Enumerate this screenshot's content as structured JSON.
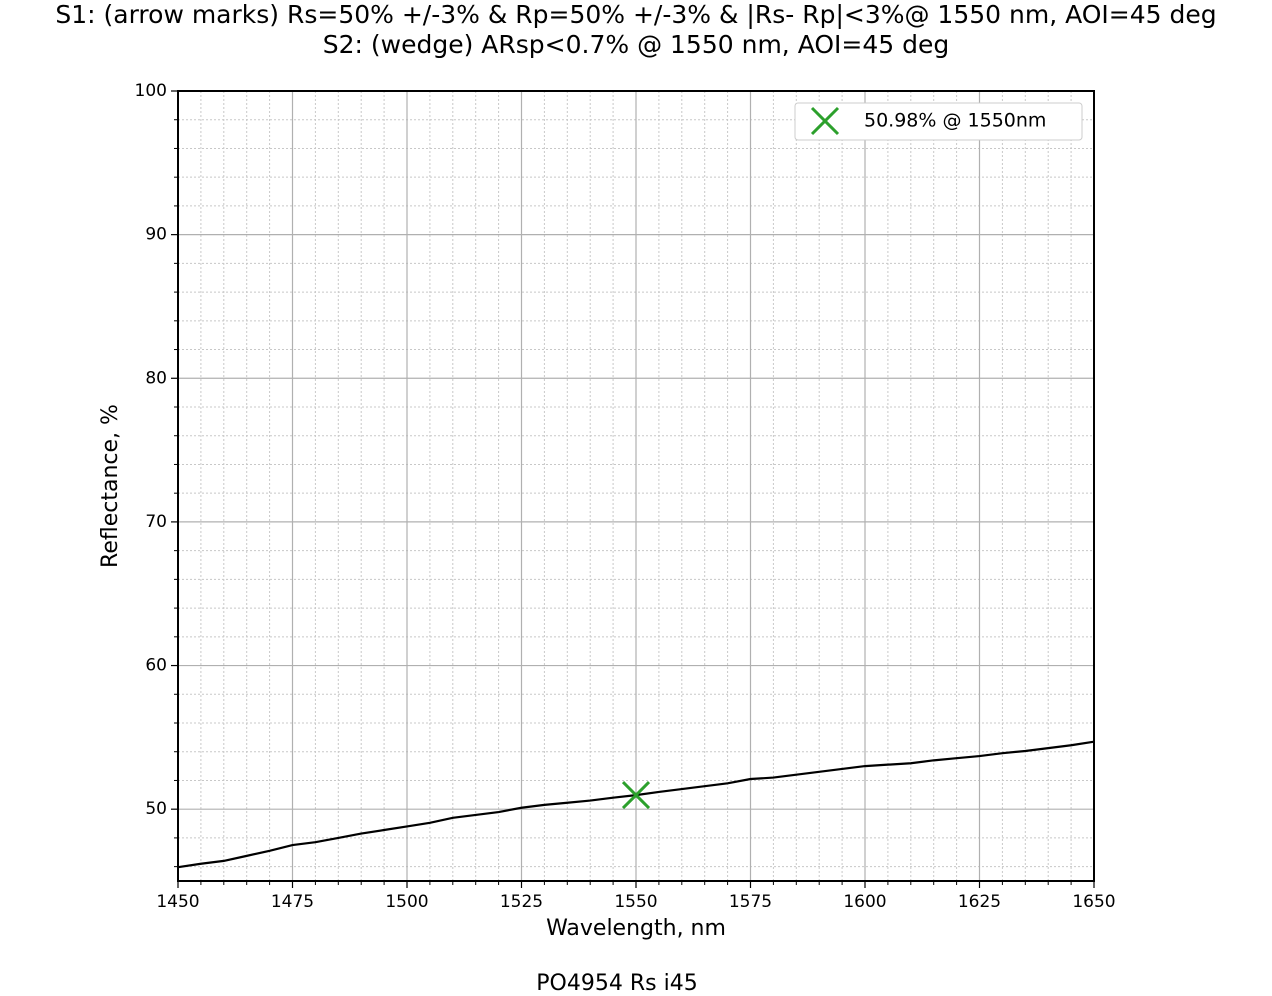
{
  "chart_data": {
    "type": "line",
    "title": [
      "S1: (arrow marks) Rs=50% +/-3% & Rp=50% +/-3% & |Rs- Rp|<3%@ 1550 nm, AOI=45 deg",
      "S2: (wedge) ARsp<0.7% @ 1550 nm, AOI=45 deg"
    ],
    "caption": "PO4954 Rs i45",
    "xlabel": "Wavelength, nm",
    "ylabel": "Reflectance, %",
    "x": [
      1450,
      1455,
      1460,
      1465,
      1470,
      1475,
      1480,
      1485,
      1490,
      1495,
      1500,
      1505,
      1510,
      1515,
      1520,
      1525,
      1530,
      1535,
      1540,
      1545,
      1550,
      1555,
      1560,
      1565,
      1570,
      1575,
      1580,
      1585,
      1590,
      1595,
      1600,
      1605,
      1610,
      1615,
      1620,
      1625,
      1630,
      1635,
      1640,
      1645,
      1650
    ],
    "series": [
      {
        "color": "#000000",
        "values": [
          45.96,
          46.2,
          46.4,
          46.75,
          47.1,
          47.5,
          47.7,
          48.0,
          48.3,
          48.55,
          48.8,
          49.05,
          49.4,
          49.6,
          49.8,
          50.1,
          50.3,
          50.45,
          50.6,
          50.8,
          50.98,
          51.2,
          51.4,
          51.6,
          51.8,
          52.1,
          52.2,
          52.4,
          52.6,
          52.8,
          53.0,
          53.1,
          53.2,
          53.4,
          53.55,
          53.7,
          53.9,
          54.05,
          54.25,
          54.45,
          54.7
        ]
      }
    ],
    "marker": {
      "x": 1550,
      "y": 50.98,
      "label": "50.98% @ 1550nm",
      "color": "#2ca02c"
    },
    "xlim": [
      1450,
      1650
    ],
    "ylim": [
      45,
      100
    ],
    "xticks": [
      1450,
      1475,
      1500,
      1525,
      1550,
      1575,
      1600,
      1625,
      1650
    ],
    "yticks": [
      50,
      60,
      70,
      80,
      90,
      100
    ],
    "xminorticks": [
      1455,
      1460,
      1465,
      1470,
      1480,
      1485,
      1490,
      1495,
      1505,
      1510,
      1515,
      1520,
      1530,
      1535,
      1540,
      1545,
      1555,
      1560,
      1565,
      1570,
      1580,
      1585,
      1590,
      1595,
      1605,
      1610,
      1615,
      1620,
      1630,
      1635,
      1640,
      1645
    ],
    "yminorticks": [
      46,
      48,
      52,
      54,
      56,
      58,
      62,
      64,
      66,
      68,
      72,
      74,
      76,
      78,
      82,
      84,
      86,
      88,
      92,
      94,
      96,
      98
    ],
    "grid": true,
    "legend": "upper right"
  }
}
